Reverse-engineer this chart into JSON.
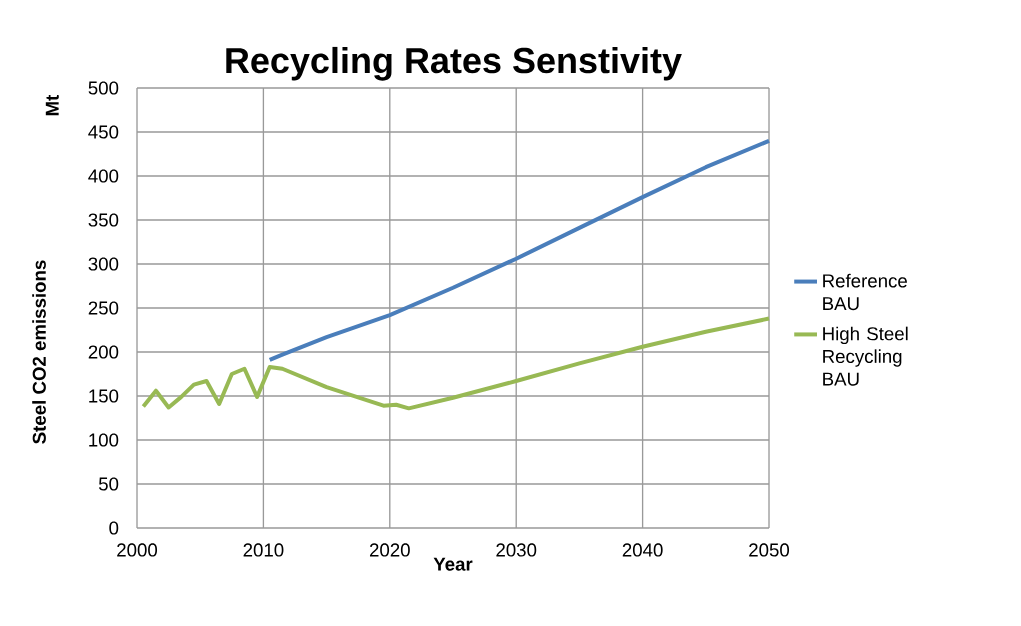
{
  "chart_data": {
    "type": "line",
    "title": "Recycling Rates Senstivity",
    "xlabel": "Year",
    "ylabel": "Steel CO2 emissions",
    "annotations": [
      "Mt"
    ],
    "series": [
      {
        "name": "Reference BAU",
        "color": "#4a7ebb",
        "x": [
          2010.5,
          2011.5,
          2015,
          2020,
          2025,
          2030,
          2035,
          2040,
          2045,
          2050
        ],
        "values": [
          191,
          197,
          217,
          242,
          273,
          306,
          341,
          376,
          410,
          440
        ]
      },
      {
        "name": "High Steel Recycling BAU",
        "color": "#98b954",
        "x": [
          2000.5,
          2001.5,
          2002.5,
          2003.5,
          2004.5,
          2005.5,
          2006.5,
          2007.5,
          2008.5,
          2009.5,
          2010.5,
          2011.5,
          2015,
          2019.5,
          2020.5,
          2021.5,
          2025,
          2030,
          2035,
          2040,
          2045,
          2050
        ],
        "values": [
          138,
          156,
          137,
          149,
          163,
          167,
          141,
          175,
          181,
          149,
          183,
          181,
          160,
          139,
          140,
          136,
          148,
          167,
          187,
          206,
          223,
          238
        ]
      }
    ],
    "xlim": [
      2000,
      2050
    ],
    "ylim": [
      0,
      500
    ],
    "xticks": [
      2000,
      2010,
      2020,
      2030,
      2040,
      2050
    ],
    "yticks": [
      0,
      50,
      100,
      150,
      200,
      250,
      300,
      350,
      400,
      450,
      500
    ],
    "grid": true,
    "legend": "right",
    "marker": "none",
    "line_style": "solid"
  }
}
